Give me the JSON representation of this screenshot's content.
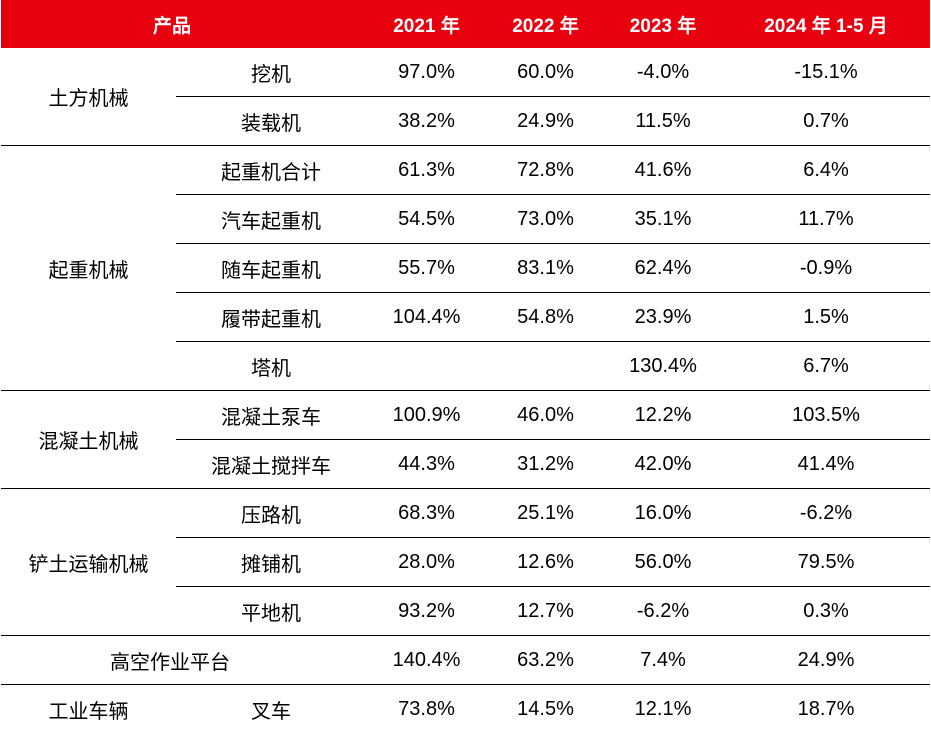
{
  "headers": {
    "product": "产品",
    "y2021": "2021 年",
    "y2022": "2022 年",
    "y2023": "2023 年",
    "y2024": "2024 年 1-5 月"
  },
  "groups": [
    {
      "category": "土方机械",
      "rows": [
        {
          "product": "挖机",
          "v2021": "97.0%",
          "v2022": "60.0%",
          "v2023": "-4.0%",
          "v2024": "-15.1%"
        },
        {
          "product": "装载机",
          "v2021": "38.2%",
          "v2022": "24.9%",
          "v2023": "11.5%",
          "v2024": "0.7%"
        }
      ]
    },
    {
      "category": "起重机械",
      "rows": [
        {
          "product": "起重机合计",
          "v2021": "61.3%",
          "v2022": "72.8%",
          "v2023": "41.6%",
          "v2024": "6.4%"
        },
        {
          "product": "汽车起重机",
          "v2021": "54.5%",
          "v2022": "73.0%",
          "v2023": "35.1%",
          "v2024": "11.7%"
        },
        {
          "product": "随车起重机",
          "v2021": "55.7%",
          "v2022": "83.1%",
          "v2023": "62.4%",
          "v2024": "-0.9%"
        },
        {
          "product": "履带起重机",
          "v2021": "104.4%",
          "v2022": "54.8%",
          "v2023": "23.9%",
          "v2024": "1.5%"
        },
        {
          "product": "塔机",
          "v2021": "",
          "v2022": "",
          "v2023": "130.4%",
          "v2024": "6.7%"
        }
      ]
    },
    {
      "category": "混凝土机械",
      "rows": [
        {
          "product": "混凝土泵车",
          "v2021": "100.9%",
          "v2022": "46.0%",
          "v2023": "12.2%",
          "v2024": "103.5%"
        },
        {
          "product": "混凝土搅拌车",
          "v2021": "44.3%",
          "v2022": "31.2%",
          "v2023": "42.0%",
          "v2024": "41.4%"
        }
      ]
    },
    {
      "category": "铲土运输机械",
      "rows": [
        {
          "product": "压路机",
          "v2021": "68.3%",
          "v2022": "25.1%",
          "v2023": "16.0%",
          "v2024": "-6.2%"
        },
        {
          "product": "摊铺机",
          "v2021": "28.0%",
          "v2022": "12.6%",
          "v2023": "56.0%",
          "v2024": "79.5%"
        },
        {
          "product": "平地机",
          "v2021": "93.2%",
          "v2022": "12.7%",
          "v2023": "-6.2%",
          "v2024": "0.3%"
        }
      ]
    }
  ],
  "aerial": {
    "product": "高空作业平台",
    "v2021": "140.4%",
    "v2022": "63.2%",
    "v2023": "7.4%",
    "v2024": "24.9%"
  },
  "industrial": {
    "category": "工业车辆",
    "product": "叉车",
    "v2021": "73.8%",
    "v2022": "14.5%",
    "v2023": "12.1%",
    "v2024": "18.7%"
  },
  "colors": {
    "header_bg": "#e8000f",
    "header_text": "#ffffff",
    "rule": "#000000"
  }
}
